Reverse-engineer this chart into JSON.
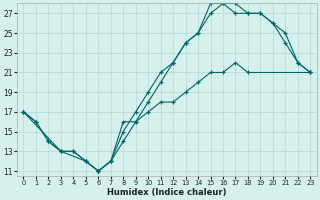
{
  "xlabel": "Humidex (Indice chaleur)",
  "background_color": "#d6f0ee",
  "grid_color": "#b8dcd8",
  "line_color": "#006666",
  "xlim": [
    -0.5,
    23.5
  ],
  "ylim": [
    10.5,
    28.0
  ],
  "xticks": [
    0,
    1,
    2,
    3,
    4,
    5,
    6,
    7,
    8,
    9,
    10,
    11,
    12,
    13,
    14,
    15,
    16,
    17,
    18,
    19,
    20,
    21,
    22,
    23
  ],
  "yticks": [
    11,
    13,
    15,
    17,
    19,
    21,
    23,
    25,
    27
  ],
  "line1_x": [
    0,
    1,
    2,
    3,
    4,
    5,
    6,
    7,
    8,
    9,
    10,
    11,
    12,
    13,
    14,
    15,
    16,
    17,
    18,
    19,
    20,
    21,
    22,
    23
  ],
  "line1_y": [
    17,
    16,
    14,
    13,
    13,
    12,
    11,
    12,
    14,
    16,
    18,
    20,
    22,
    24,
    25,
    27,
    28,
    28,
    27,
    27,
    26,
    25,
    22,
    21
  ],
  "line2_x": [
    0,
    1,
    2,
    3,
    4,
    5,
    6,
    7,
    8,
    9,
    10,
    11,
    12,
    13,
    14,
    15,
    16,
    17,
    18,
    19,
    20,
    21,
    22,
    23
  ],
  "line2_y": [
    17,
    16,
    14,
    13,
    13,
    12,
    11,
    12,
    15,
    17,
    19,
    21,
    22,
    24,
    25,
    28,
    28,
    27,
    27,
    27,
    26,
    24,
    22,
    21
  ],
  "line3_x": [
    0,
    3,
    5,
    6,
    7,
    8,
    9,
    10,
    11,
    12,
    13,
    14,
    15,
    16,
    17,
    18,
    23
  ],
  "line3_y": [
    17,
    13,
    12,
    11,
    12,
    16,
    16,
    17,
    18,
    18,
    19,
    20,
    21,
    21,
    22,
    21,
    21
  ]
}
